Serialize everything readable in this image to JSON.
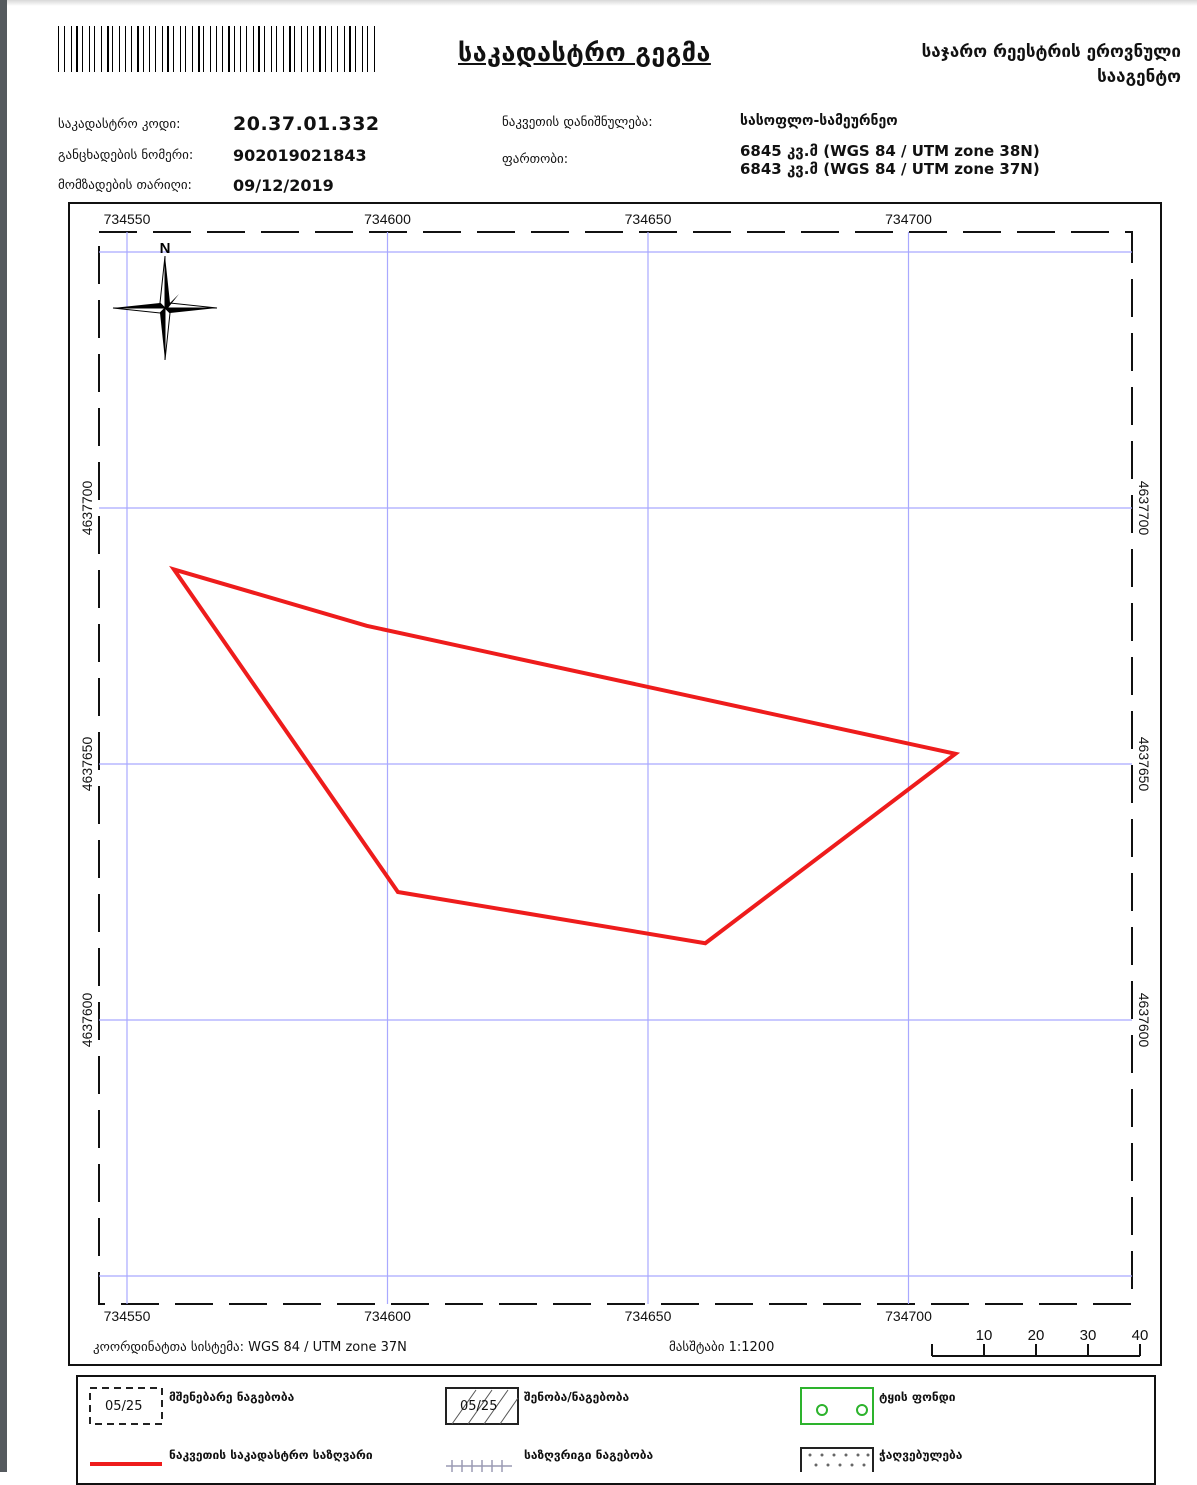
{
  "header": {
    "title": "საკადასტრო გეგმა",
    "agency_line1": "საჯარო რეესტრის ეროვნული",
    "agency_line2": "სააგენტო"
  },
  "info": {
    "cadastral_code_label": "საკადასტრო კოდი:",
    "cadastral_code": "20.37.01.332",
    "application_number_label": "განცხადების ნომერი:",
    "application_number": "902019021843",
    "prep_date_label": "მომზადების თარიღი:",
    "prep_date": "09/12/2019",
    "purpose_label": "ნაკვეთის დანიშნულება:",
    "purpose": "სასოფლო-სამეურნეო",
    "area_label": "ფართობი:",
    "area_38n": "6845 კვ.მ (WGS 84 / UTM zone 38N)",
    "area_37n": "6843 კვ.მ (WGS 84 / UTM zone 37N)"
  },
  "map": {
    "x_ticks": [
      "734550",
      "734600",
      "734650",
      "734700"
    ],
    "y_ticks": [
      "4637700",
      "4637650",
      "4637600"
    ],
    "north_label": "N",
    "grid_color": "#a9a9ff",
    "boundary_color": "#ee1c1c",
    "parcel_boundary": [
      [
        734559,
        4637688
      ],
      [
        734596,
        4637677
      ],
      [
        734709,
        4637652
      ],
      [
        734661,
        4637615
      ],
      [
        734602,
        4637625
      ]
    ],
    "coord_system": "კოორდინატთა სისტემა: WGS 84 / UTM zone 37N",
    "scale": "მასშტაბი 1:1200",
    "scale_bar": [
      "10",
      "20",
      "30",
      "40"
    ]
  },
  "legend": {
    "existing_building_num": "05/25",
    "existing_building": "მშენებარე ნაგებობა",
    "building_num": "05/25",
    "building": "შენობა/ნაგებობა",
    "tree_cover": "ტყის ფონდი",
    "parcel_boundary": "ნაკვეთის საკადასტრო საზღვარი",
    "temp_structure": "საზღვრიგი ნაგებობა",
    "wetland": "ჭაღვებულება"
  }
}
